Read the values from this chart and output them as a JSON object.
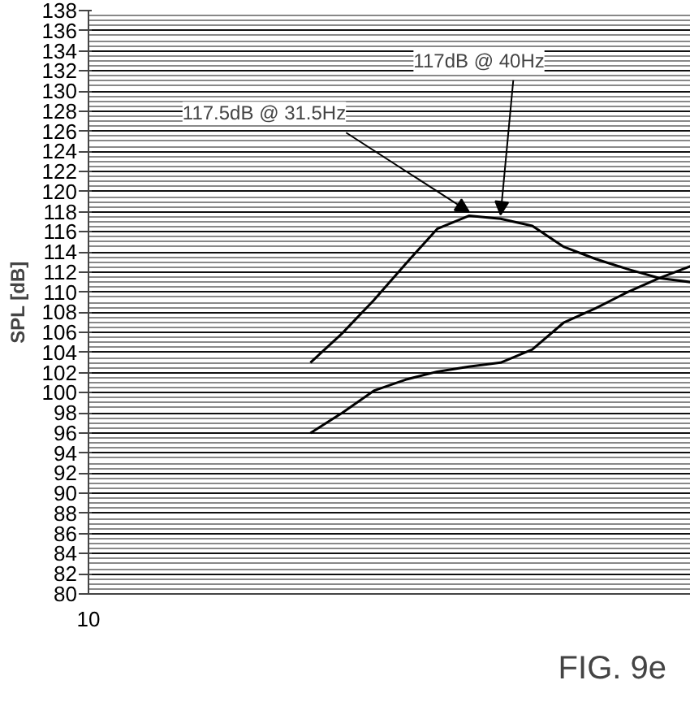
{
  "chart_data": {
    "type": "line",
    "ylabel": "SPL [dB]",
    "ylim": [
      80,
      138
    ],
    "categories": [
      "10",
      null,
      null,
      null,
      null,
      null,
      null,
      null,
      null,
      null,
      null,
      null,
      null,
      null,
      null,
      null,
      null,
      null,
      null,
      null
    ],
    "yticks": [
      80,
      82,
      84,
      86,
      88,
      90,
      92,
      94,
      96,
      98,
      100,
      102,
      104,
      106,
      108,
      110,
      112,
      114,
      116,
      118,
      120,
      122,
      124,
      126,
      128,
      130,
      132,
      134,
      136,
      138
    ],
    "grid": "y",
    "marker": "none",
    "line_style": "solid",
    "series": [
      {
        "color": "#000000",
        "values": [
          null,
          null,
          null,
          null,
          null,
          null,
          null,
          103.0,
          105.9,
          109.2,
          112.8,
          116.3,
          117.6,
          117.3,
          116.6,
          114.5,
          113.3,
          112.3,
          111.4,
          111.0
        ]
      },
      {
        "color": "#000000",
        "values": [
          null,
          null,
          null,
          null,
          null,
          null,
          null,
          96.0,
          98.0,
          100.2,
          101.3,
          102.1,
          102.6,
          103.0,
          104.3,
          107.0,
          108.4,
          110.0,
          111.4,
          112.6
        ]
      }
    ],
    "annotations": [
      "117.5dB @ 31.5Hz",
      "117dB @ 40Hz",
      "FIG. 9e"
    ]
  }
}
